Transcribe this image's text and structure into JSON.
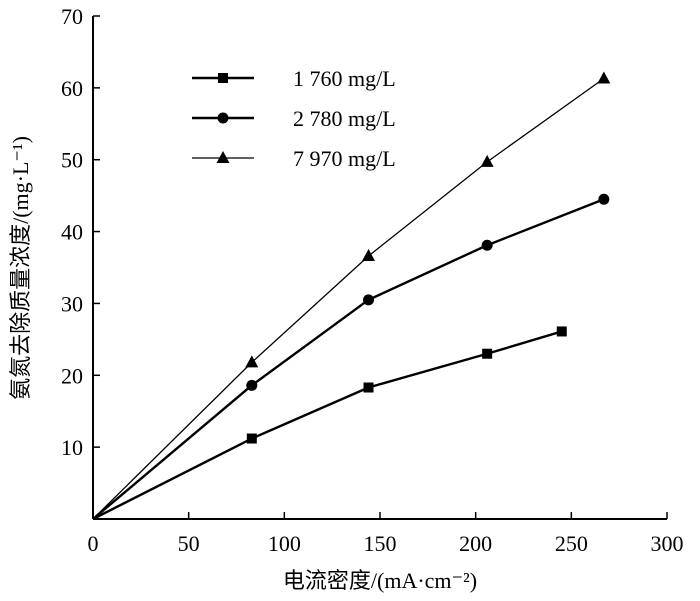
{
  "chart_data": {
    "type": "line",
    "xlabel": "电流密度/(mA·cm⁻²)",
    "ylabel": "氨氮去除质量浓度/(mg·L⁻¹)",
    "xlim": [
      0,
      300
    ],
    "ylim": [
      0,
      70
    ],
    "xticks": [
      "0",
      "50",
      "100",
      "150",
      "200",
      "250",
      "300"
    ],
    "yticks": [
      "10",
      "20",
      "30",
      "40",
      "50",
      "60",
      "70"
    ],
    "legend_position": "top-left",
    "grid": false,
    "series": [
      {
        "name": "1 760 mg/L",
        "marker": "square",
        "line_width": 2.4,
        "x": [
          0,
          83,
          144,
          206,
          245
        ],
        "y": [
          0,
          11.2,
          18.3,
          23.0,
          26.1
        ]
      },
      {
        "name": "2 780 mg/L",
        "marker": "circle",
        "line_width": 2.4,
        "x": [
          0,
          83,
          144,
          206,
          267
        ],
        "y": [
          0,
          18.6,
          30.5,
          38.1,
          44.5
        ]
      },
      {
        "name": "7 970 mg/L",
        "marker": "triangle",
        "line_width": 1.3,
        "x": [
          0,
          83,
          144,
          206,
          267
        ],
        "y": [
          0,
          21.8,
          36.6,
          49.7,
          61.3
        ]
      }
    ]
  }
}
